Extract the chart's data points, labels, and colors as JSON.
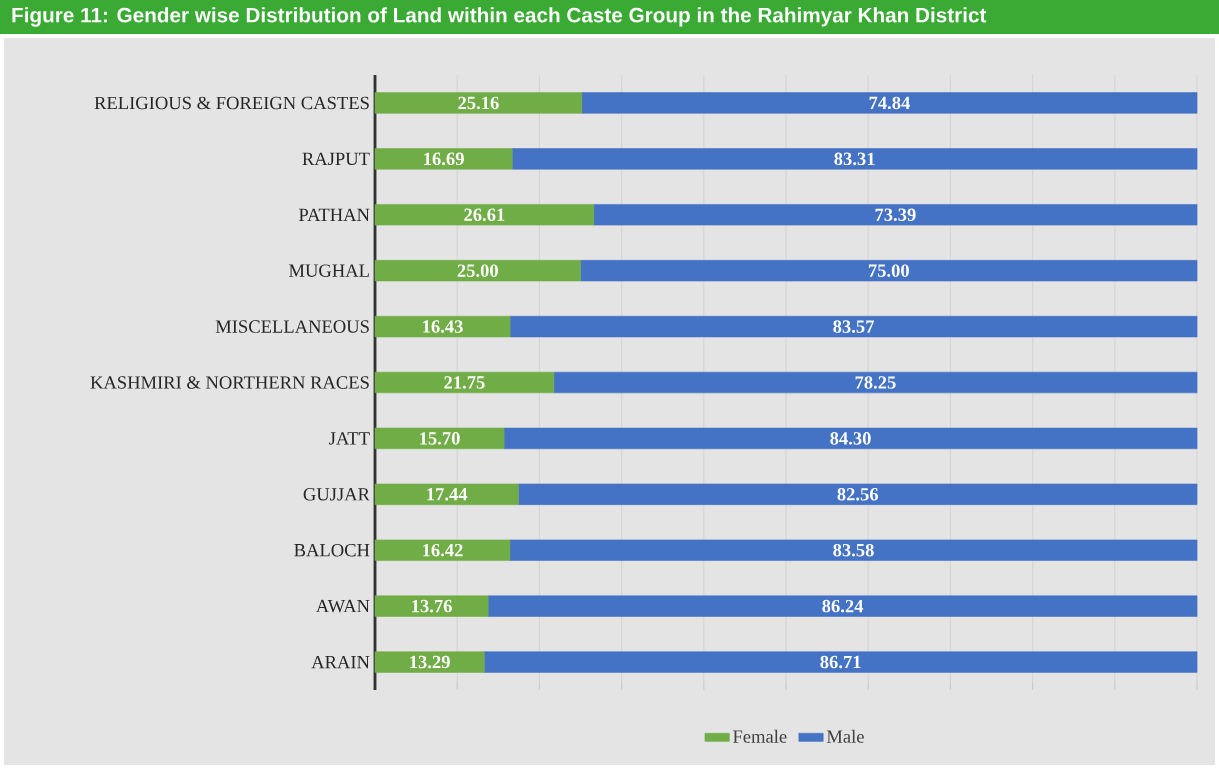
{
  "chart_data": {
    "type": "bar",
    "orientation": "horizontal",
    "stacked": true,
    "title": "Figure 11: Gender wise Distribution of Land within each Caste Group in the Rahimyar Khan District",
    "categories": [
      "RELIGIOUS & FOREIGN CASTES",
      "RAJPUT",
      "PATHAN",
      "MUGHAL",
      "MISCELLANEOUS",
      "KASHMIRI & NORTHERN RACES",
      "JATT",
      "GUJJAR",
      "BALOCH",
      "AWAN",
      "ARAIN"
    ],
    "series": [
      {
        "name": "Female",
        "color": "#70ad47",
        "values": [
          25.16,
          16.69,
          26.61,
          25.0,
          16.43,
          21.75,
          15.7,
          17.44,
          16.42,
          13.76,
          13.29
        ],
        "value_labels": [
          "25.16",
          "16.69",
          "26.61",
          "25.00",
          "16.43",
          "21.75",
          "15.70",
          "17.44",
          "16.42",
          "13.76",
          "13.29"
        ]
      },
      {
        "name": "Male",
        "color": "#4472c4",
        "values": [
          74.84,
          83.31,
          73.39,
          75.0,
          83.57,
          78.25,
          84.3,
          82.56,
          83.58,
          86.24,
          86.71
        ],
        "value_labels": [
          "74.84",
          "83.31",
          "73.39",
          "75.00",
          "83.57",
          "78.25",
          "84.30",
          "82.56",
          "83.58",
          "86.24",
          "86.71"
        ]
      }
    ],
    "xlim": [
      0,
      100
    ],
    "xticks": [
      {
        "value": 0,
        "label": null
      },
      {
        "value": 10,
        "label": null
      },
      {
        "value": 20,
        "label": null
      },
      {
        "value": 30,
        "label": null
      },
      {
        "value": 40,
        "label": null
      },
      {
        "value": 50,
        "label": null
      },
      {
        "value": 60,
        "label": null
      },
      {
        "value": 70,
        "label": null
      },
      {
        "value": 80,
        "label": null
      },
      {
        "value": 90,
        "label": null
      },
      {
        "value": 100,
        "label": null
      }
    ],
    "tick_labels": "y",
    "grid": "x",
    "legend": "bottom"
  }
}
